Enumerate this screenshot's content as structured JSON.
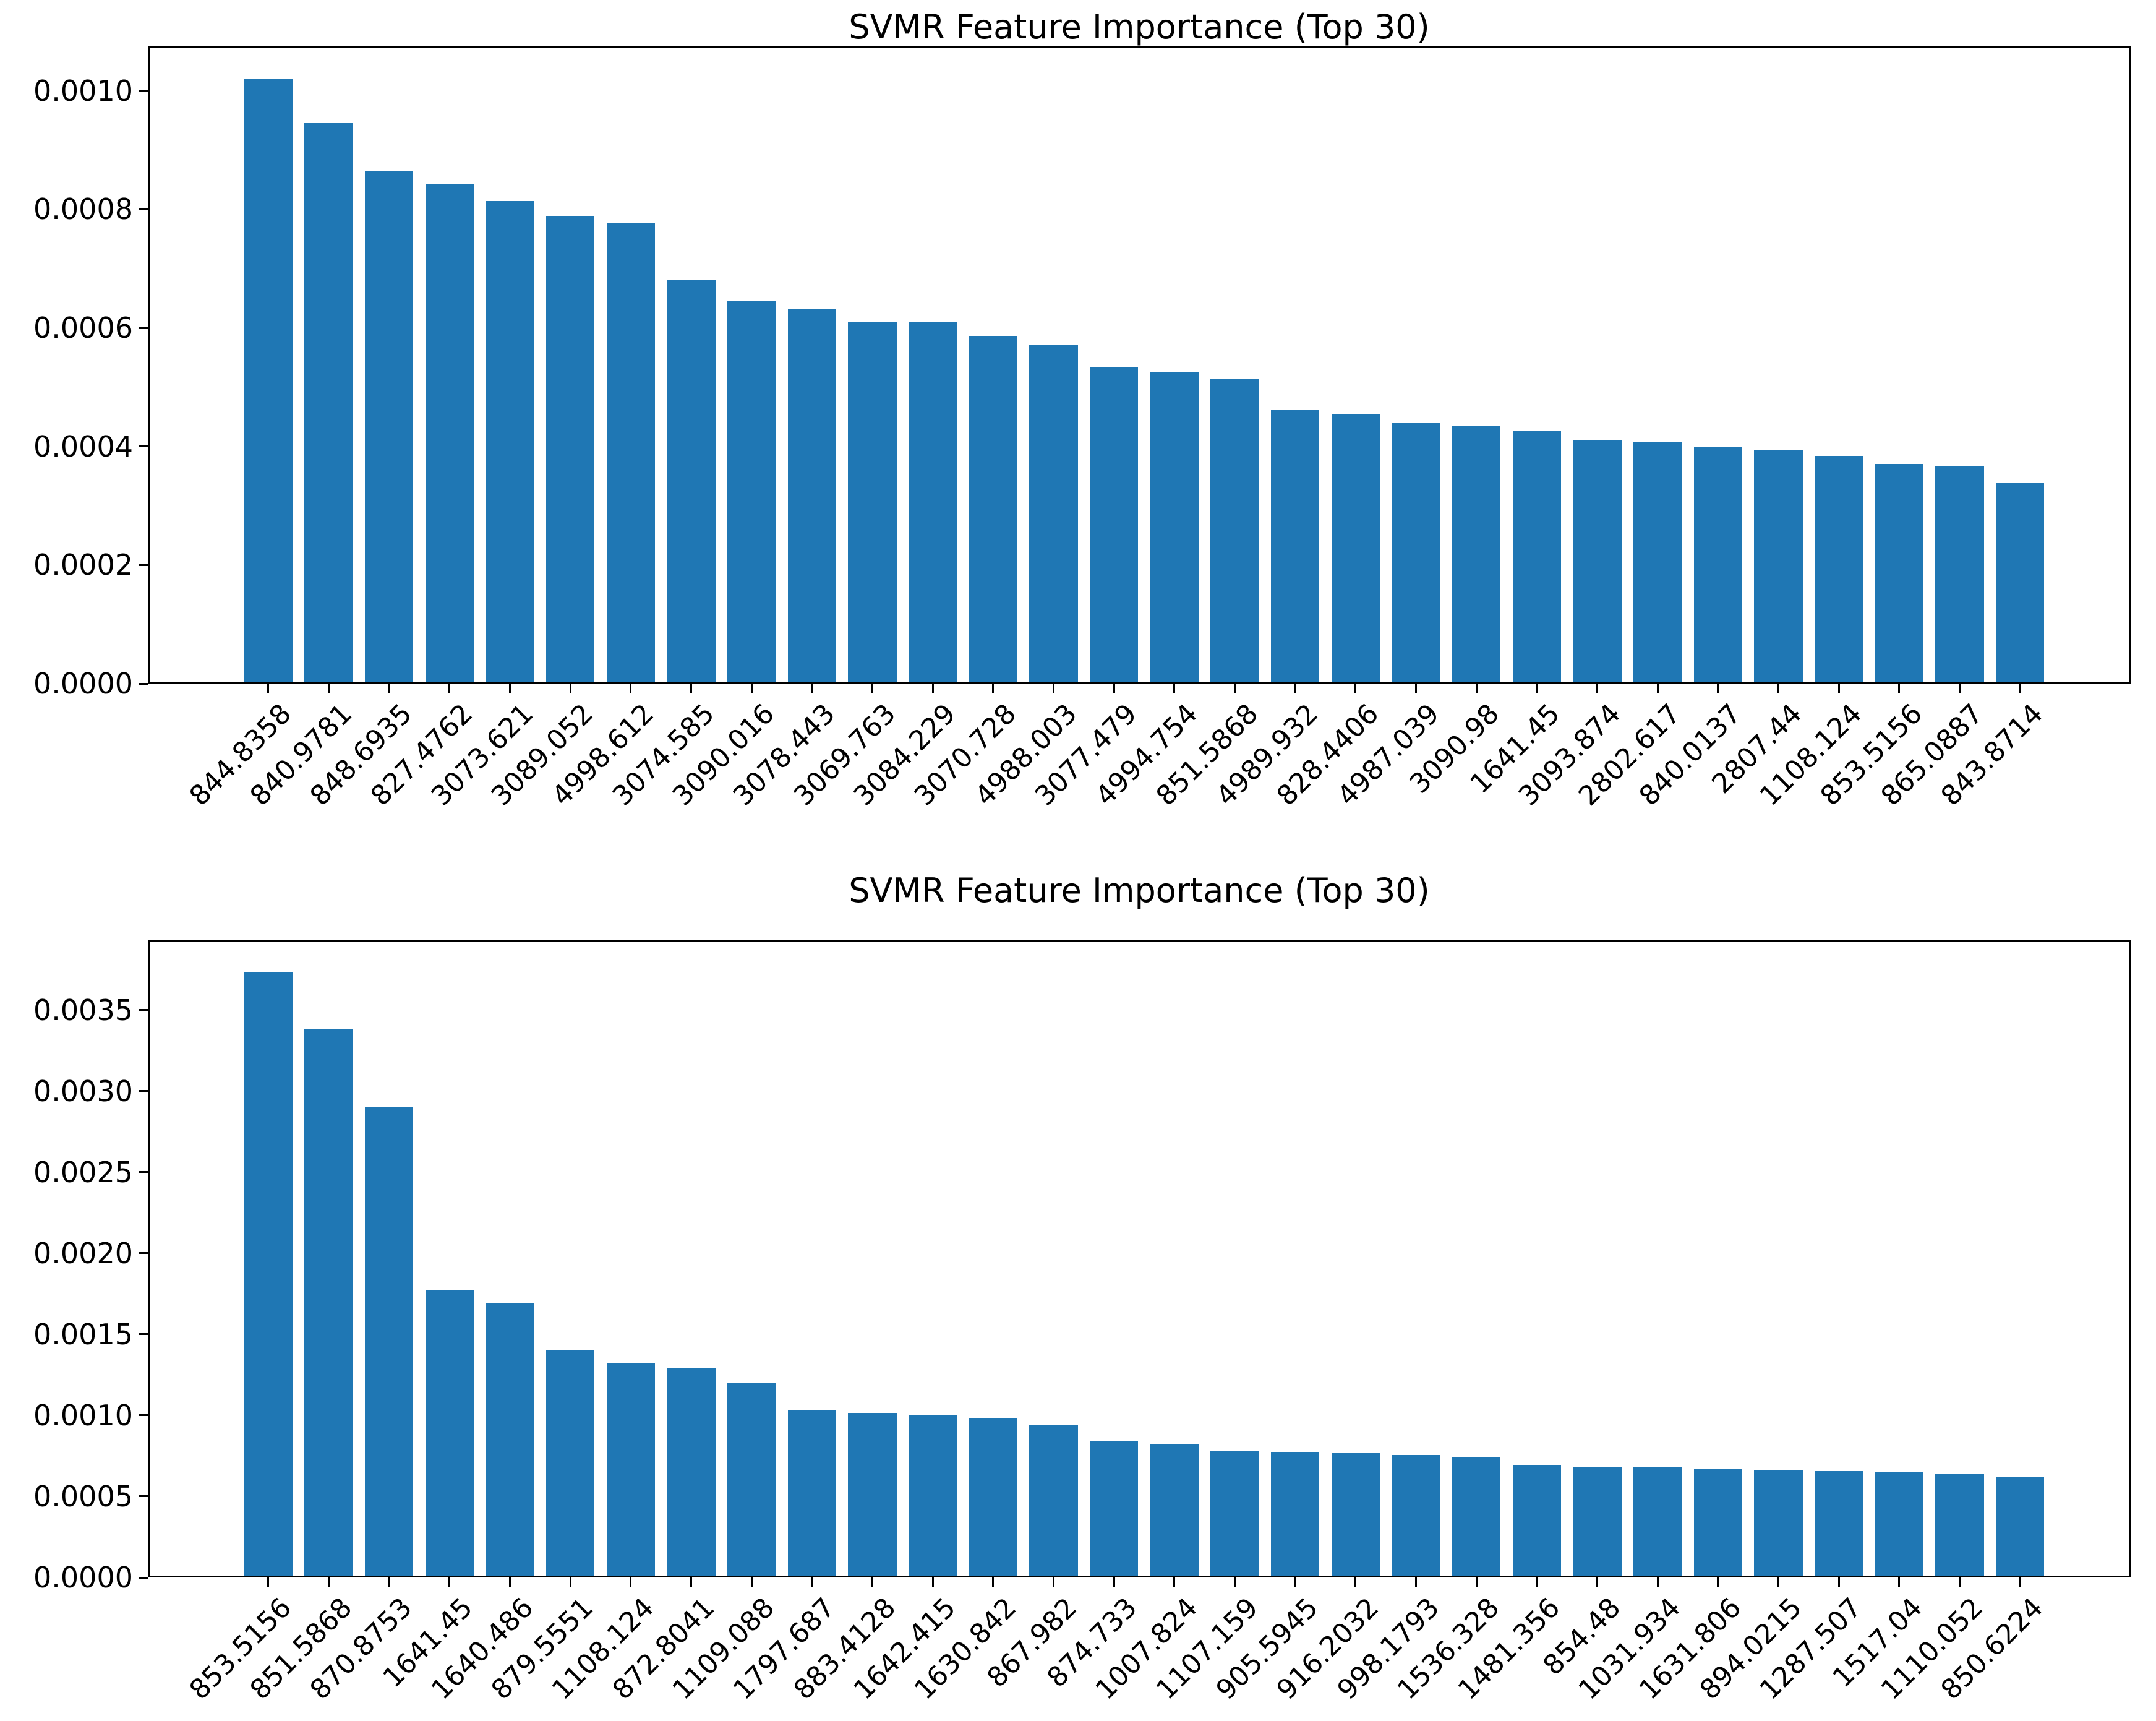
{
  "figure": {
    "background_color": "#ffffff",
    "text_color": "#000000",
    "bar_color": "#1f77b4"
  },
  "chart_data": [
    {
      "type": "bar",
      "title": "SVMR Feature Importance (Top 30)",
      "xlabel": "",
      "ylabel": "",
      "grid": false,
      "legend": false,
      "tick_label_rotation": 45,
      "ylim": [
        0,
        0.001075
      ],
      "ytick_labels": [
        "0.0000",
        "0.0002",
        "0.0004",
        "0.0006",
        "0.0008",
        "0.0010"
      ],
      "ytick_values": [
        0.0,
        0.0002,
        0.0004,
        0.0006,
        0.0008,
        0.001
      ],
      "categories": [
        "844.8358",
        "840.9781",
        "848.6935",
        "827.4762",
        "3073.621",
        "3089.052",
        "4998.612",
        "3074.585",
        "3090.016",
        "3078.443",
        "3069.763",
        "3084.229",
        "3070.728",
        "4988.003",
        "3077.479",
        "4994.754",
        "851.5868",
        "4989.932",
        "828.4406",
        "4987.039",
        "3090.98",
        "1641.45",
        "3093.874",
        "2802.617",
        "840.0137",
        "2807.44",
        "1108.124",
        "853.5156",
        "865.0887",
        "843.8714"
      ],
      "values": [
        0.00102,
        0.000946,
        0.000864,
        0.000843,
        0.000814,
        0.000789,
        0.000777,
        0.000681,
        0.000646,
        0.000631,
        0.000611,
        0.000609,
        0.000587,
        0.000571,
        0.000534,
        0.000526,
        0.000513,
        0.000461,
        0.000454,
        0.00044,
        0.000434,
        0.000426,
        0.00041,
        0.000407,
        0.000399,
        0.000394,
        0.000384,
        0.000371,
        0.000367,
        0.000338
      ]
    },
    {
      "type": "bar",
      "title": "SVMR Feature Importance (Top 30)",
      "xlabel": "",
      "ylabel": "",
      "grid": false,
      "legend": false,
      "tick_label_rotation": 45,
      "ylim": [
        0,
        0.00393
      ],
      "ytick_labels": [
        "0.0000",
        "0.0005",
        "0.0010",
        "0.0015",
        "0.0020",
        "0.0025",
        "0.0030",
        "0.0035"
      ],
      "ytick_values": [
        0.0,
        0.0005,
        0.001,
        0.0015,
        0.002,
        0.0025,
        0.003,
        0.0035
      ],
      "categories": [
        "853.5156",
        "851.5868",
        "870.8753",
        "1641.45",
        "1640.486",
        "879.5551",
        "1108.124",
        "872.8041",
        "1109.088",
        "1797.687",
        "883.4128",
        "1642.415",
        "1630.842",
        "867.982",
        "874.733",
        "1007.824",
        "1107.159",
        "905.5945",
        "916.2032",
        "998.1793",
        "1536.328",
        "1481.356",
        "854.48",
        "1031.934",
        "1631.806",
        "894.0215",
        "1287.507",
        "1517.04",
        "1110.052",
        "850.6224"
      ],
      "values": [
        0.00373,
        0.00338,
        0.0029,
        0.00177,
        0.00169,
        0.0014,
        0.00132,
        0.001295,
        0.0012,
        0.00103,
        0.001015,
        0.001,
        0.000985,
        0.00094,
        0.00084,
        0.000825,
        0.00078,
        0.000775,
        0.00077,
        0.000755,
        0.00074,
        0.000695,
        0.00068,
        0.000678,
        0.00067,
        0.00066,
        0.000655,
        0.00065,
        0.00064,
        0.000618
      ]
    }
  ]
}
